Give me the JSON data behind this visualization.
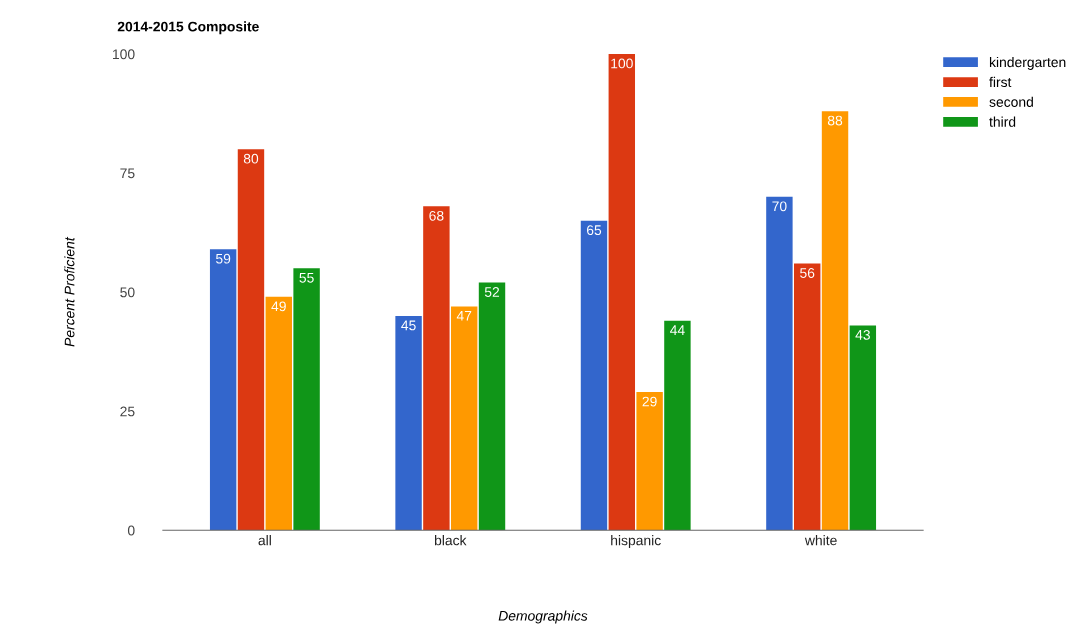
{
  "chart_data": {
    "type": "bar",
    "title": "2014-2015 Composite",
    "xlabel": "Demographics",
    "ylabel": "Percent Proficient",
    "categories": [
      "all",
      "black",
      "hispanic",
      "white"
    ],
    "series": [
      {
        "name": "kindergarten",
        "color": "#3366cc",
        "values": [
          59,
          45,
          65,
          70
        ]
      },
      {
        "name": "first",
        "color": "#dc3912",
        "values": [
          80,
          68,
          100,
          56
        ]
      },
      {
        "name": "second",
        "color": "#ff9900",
        "values": [
          49,
          47,
          29,
          88
        ]
      },
      {
        "name": "third",
        "color": "#109618",
        "values": [
          55,
          52,
          44,
          43
        ]
      }
    ],
    "ylim": [
      0,
      100
    ],
    "yticks": [
      0,
      25,
      50,
      75,
      100
    ],
    "grid": false,
    "legend": "top right",
    "data_labels": true
  }
}
